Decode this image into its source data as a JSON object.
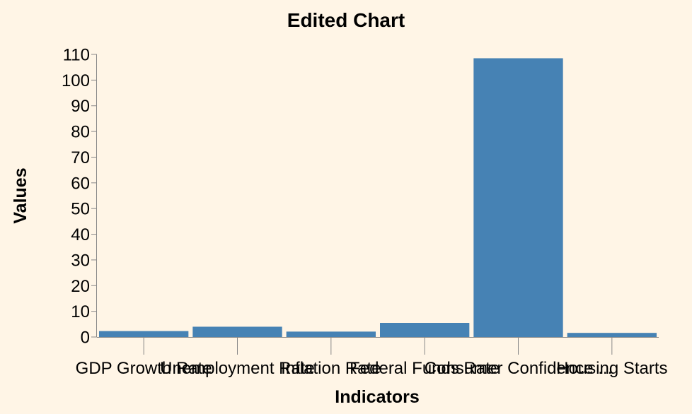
{
  "chart_data": {
    "type": "bar",
    "title": "Edited Chart",
    "xlabel": "Indicators",
    "ylabel": "Values",
    "categories": [
      "GDP Growth Rate",
      "Unemployment Rate",
      "Inflation Rate",
      "Federal Funds Rate",
      "Consumer Confidence ...",
      "Housing Starts"
    ],
    "values": [
      2.3,
      4.0,
      2.1,
      5.5,
      108.5,
      1.6
    ],
    "ylim": [
      0,
      110
    ],
    "yticks": [
      0,
      10,
      20,
      30,
      40,
      50,
      60,
      70,
      80,
      90,
      100,
      110
    ],
    "grid": false,
    "bar_color": "#4682b4",
    "background": "#fff5e6"
  }
}
